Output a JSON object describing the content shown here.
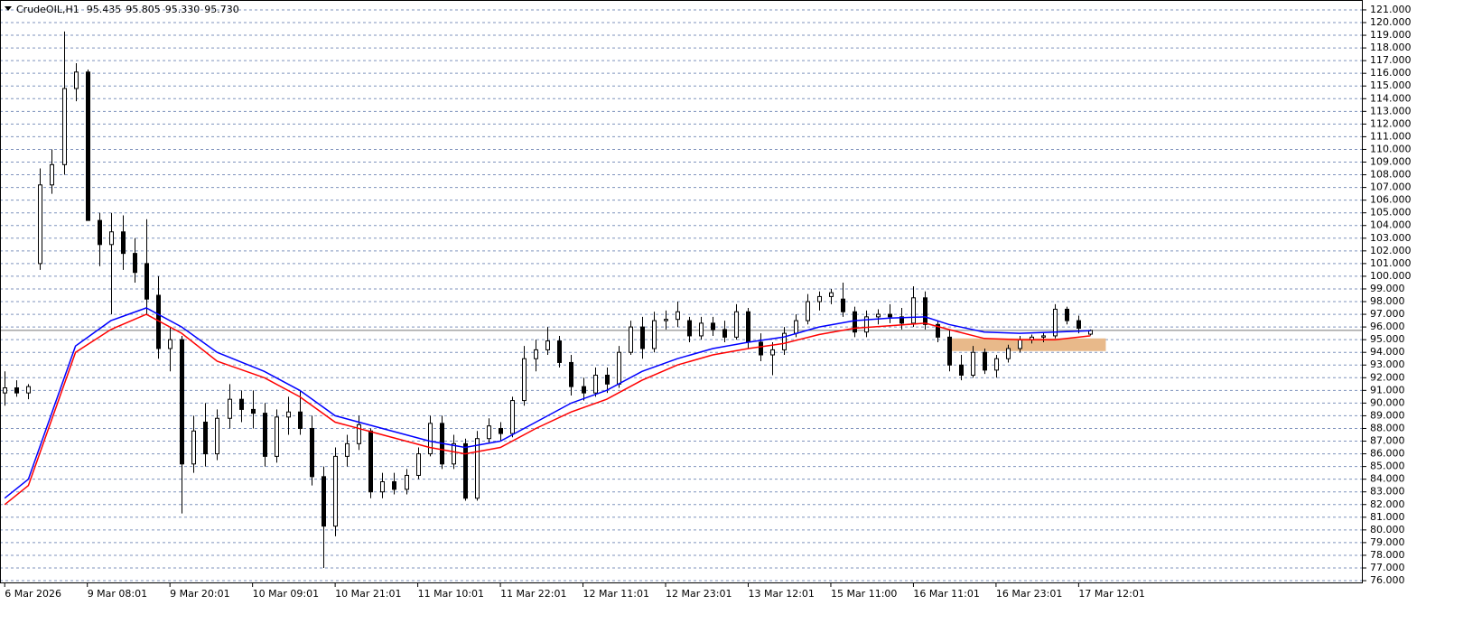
{
  "chart_data": {
    "type": "candlestick",
    "header": {
      "symbol": "CrudeOIL,H1",
      "values": [
        95.435,
        95.805,
        95.33,
        95.73
      ],
      "value_labels": [
        "95.435",
        "95.805",
        "95.330",
        "95.730"
      ]
    },
    "ylim": [
      75.86,
      121.78
    ],
    "yticks": [
      {
        "value": 76,
        "label": "76.000"
      },
      {
        "value": 77,
        "label": "77.000"
      },
      {
        "value": 78,
        "label": "78.000"
      },
      {
        "value": 79,
        "label": "79.000"
      },
      {
        "value": 80,
        "label": "80.000"
      },
      {
        "value": 81,
        "label": "81.000"
      },
      {
        "value": 82,
        "label": "82.000"
      },
      {
        "value": 83,
        "label": "83.000"
      },
      {
        "value": 84,
        "label": "84.000"
      },
      {
        "value": 85,
        "label": "85.000"
      },
      {
        "value": 86,
        "label": "86.000"
      },
      {
        "value": 87,
        "label": "87.000"
      },
      {
        "value": 88,
        "label": "88.000"
      },
      {
        "value": 89,
        "label": "89.000"
      },
      {
        "value": 90,
        "label": "90.000"
      },
      {
        "value": 91,
        "label": "91.000"
      },
      {
        "value": 92,
        "label": "92.000"
      },
      {
        "value": 93,
        "label": "93.000"
      },
      {
        "value": 94,
        "label": "94.000"
      },
      {
        "value": 95,
        "label": "95.000"
      },
      {
        "value": 96,
        "label": "96.000"
      },
      {
        "value": 97,
        "label": "97.000"
      },
      {
        "value": 98,
        "label": "98.000"
      },
      {
        "value": 99,
        "label": "99.000"
      },
      {
        "value": 100,
        "label": "100.000"
      },
      {
        "value": 101,
        "label": "101.000"
      },
      {
        "value": 102,
        "label": "102.000"
      },
      {
        "value": 103,
        "label": "103.000"
      },
      {
        "value": 104,
        "label": "104.000"
      },
      {
        "value": 105,
        "label": "105.000"
      },
      {
        "value": 106,
        "label": "106.000"
      },
      {
        "value": 107,
        "label": "107.000"
      },
      {
        "value": 108,
        "label": "108.000"
      },
      {
        "value": 109,
        "label": "109.000"
      },
      {
        "value": 110,
        "label": "110.000"
      },
      {
        "value": 111,
        "label": "111.000"
      },
      {
        "value": 112,
        "label": "112.000"
      },
      {
        "value": 113,
        "label": "113.000"
      },
      {
        "value": 114,
        "label": "114.000"
      },
      {
        "value": 115,
        "label": "115.000"
      },
      {
        "value": 116,
        "label": "116.000"
      },
      {
        "value": 117,
        "label": "117.000"
      },
      {
        "value": 118,
        "label": "118.000"
      },
      {
        "value": 119,
        "label": "119.000"
      },
      {
        "value": 120,
        "label": "120.000"
      },
      {
        "value": 121,
        "label": "121.000"
      }
    ],
    "xlim": [
      -0.4,
      115
    ],
    "xticks": [
      {
        "value": 0,
        "label": "6 Mar 2026"
      },
      {
        "value": 7,
        "label": "9 Mar 08:01"
      },
      {
        "value": 14,
        "label": "9 Mar 20:01"
      },
      {
        "value": 21,
        "label": "10 Mar 09:01"
      },
      {
        "value": 28,
        "label": "10 Mar 21:01"
      },
      {
        "value": 35,
        "label": "11 Mar 10:01"
      },
      {
        "value": 42,
        "label": "11 Mar 22:01"
      },
      {
        "value": 49,
        "label": "12 Mar 11:01"
      },
      {
        "value": 56,
        "label": "12 Mar 23:01"
      },
      {
        "value": 63,
        "label": "13 Mar 12:01"
      },
      {
        "value": 70,
        "label": "15 Mar 11:00"
      },
      {
        "value": 77,
        "label": "16 Mar 11:01"
      },
      {
        "value": 84,
        "label": "16 Mar 23:01"
      },
      {
        "value": 91,
        "label": "17 Mar 12:01"
      }
    ],
    "grid": true,
    "up_color": "#ffffff",
    "down_color": "#000000",
    "candles": [
      [
        90.8,
        92.5,
        89.8,
        91.2
      ],
      [
        91.2,
        91.8,
        90.5,
        90.8
      ],
      [
        90.8,
        91.5,
        90.3,
        91.3
      ],
      [
        101,
        108.5,
        100.5,
        107.2
      ],
      [
        107.2,
        110,
        106.5,
        108.8
      ],
      [
        108.8,
        119.3,
        108,
        114.8
      ],
      [
        114.8,
        116.8,
        113.8,
        116.1
      ],
      [
        116.1,
        116.3,
        104.5,
        104.4
      ],
      [
        104.4,
        105,
        100.8,
        102.5
      ],
      [
        102.5,
        105,
        97,
        103.5
      ],
      [
        103.5,
        104.8,
        100.5,
        101.8
      ],
      [
        101.8,
        103,
        99.5,
        100.3
      ],
      [
        101,
        104.5,
        97,
        98.2
      ],
      [
        98.5,
        100,
        93.5,
        94.3
      ],
      [
        94.3,
        96,
        92.5,
        95
      ],
      [
        95,
        95.3,
        81.3,
        85.2
      ],
      [
        85.2,
        89,
        84.5,
        87.8
      ],
      [
        88.5,
        90,
        85,
        86
      ],
      [
        86,
        89.5,
        85.5,
        88.8
      ],
      [
        88.8,
        91.5,
        88,
        90.3
      ],
      [
        90.3,
        91,
        88.5,
        89.5
      ],
      [
        89.5,
        91,
        88,
        89.2
      ],
      [
        89.2,
        90,
        85,
        85.8
      ],
      [
        85.8,
        89.5,
        85.3,
        88.9
      ],
      [
        88.9,
        90.5,
        87.5,
        89.3
      ],
      [
        89.3,
        91,
        87.5,
        88
      ],
      [
        88,
        89,
        83.5,
        84.2
      ],
      [
        84.2,
        85,
        77,
        80.3
      ],
      [
        80.3,
        86.5,
        79.5,
        85.8
      ],
      [
        85.8,
        87.5,
        85,
        86.8
      ],
      [
        86.8,
        89,
        86.3,
        88.3
      ],
      [
        87.8,
        88,
        82.5,
        83
      ],
      [
        83,
        84.5,
        82.5,
        83.8
      ],
      [
        83.8,
        84.5,
        82.8,
        83.2
      ],
      [
        83.2,
        84.8,
        82.8,
        84.3
      ],
      [
        84.3,
        86.5,
        84,
        86
      ],
      [
        86,
        89,
        85.8,
        88.4
      ],
      [
        88.4,
        89,
        84.8,
        85.2
      ],
      [
        85.2,
        87.5,
        84.8,
        86.8
      ],
      [
        86.8,
        87.2,
        82.3,
        82.5
      ],
      [
        82.5,
        87.8,
        82.3,
        87.2
      ],
      [
        87.2,
        88.8,
        86.8,
        88.2
      ],
      [
        88,
        88.5,
        87,
        87.6
      ],
      [
        87.6,
        90.5,
        87.3,
        90.2
      ],
      [
        90.2,
        94.5,
        89.8,
        93.5
      ],
      [
        93.5,
        95,
        92.5,
        94.2
      ],
      [
        94.2,
        96,
        93.8,
        94.9
      ],
      [
        94.9,
        95.3,
        92.8,
        93.2
      ],
      [
        93.2,
        93.8,
        90.6,
        91.3
      ],
      [
        91.3,
        92,
        90.2,
        90.8
      ],
      [
        90.8,
        92.8,
        90.5,
        92.2
      ],
      [
        92.2,
        92.8,
        90.8,
        91.5
      ],
      [
        91.5,
        94.5,
        91.2,
        94
      ],
      [
        94,
        96.5,
        93.8,
        96
      ],
      [
        96,
        96.8,
        93.5,
        94.3
      ],
      [
        94.3,
        97.2,
        94,
        96.5
      ],
      [
        96.5,
        97.3,
        95.8,
        96.6
      ],
      [
        96.6,
        98,
        96,
        97.2
      ],
      [
        96.5,
        96.8,
        94.8,
        95.3
      ],
      [
        95.3,
        96.8,
        95,
        96.3
      ],
      [
        96.3,
        96.8,
        95.3,
        95.8
      ],
      [
        95.8,
        96.5,
        94.8,
        95.2
      ],
      [
        95.2,
        97.8,
        95,
        97.2
      ],
      [
        97.2,
        97.5,
        94.3,
        94.8
      ],
      [
        94.8,
        95.5,
        93.3,
        93.8
      ],
      [
        93.8,
        94.8,
        92.2,
        94.2
      ],
      [
        94.2,
        96,
        93.8,
        95.5
      ],
      [
        95.5,
        97,
        95.2,
        96.5
      ],
      [
        96.5,
        98.6,
        96.2,
        98
      ],
      [
        98,
        98.8,
        97.3,
        98.4
      ],
      [
        98.4,
        99,
        97.8,
        98.7
      ],
      [
        98.2,
        99.5,
        96.8,
        97.2
      ],
      [
        97.2,
        97.6,
        95.2,
        95.6
      ],
      [
        95.6,
        97.3,
        95.2,
        96.8
      ],
      [
        96.8,
        97.4,
        96.2,
        97
      ],
      [
        97,
        97.8,
        96.3,
        96.8
      ],
      [
        96.8,
        97.5,
        95.8,
        96.3
      ],
      [
        96.3,
        99.2,
        96,
        98.3
      ],
      [
        98.3,
        98.8,
        95.8,
        96.2
      ],
      [
        96.2,
        96.5,
        94.8,
        95.2
      ],
      [
        95.2,
        95.8,
        92.5,
        93
      ],
      [
        93,
        93.8,
        91.8,
        92.2
      ],
      [
        92.2,
        94.5,
        92,
        94
      ],
      [
        94,
        94.3,
        92.3,
        92.6
      ],
      [
        92.6,
        93.8,
        92,
        93.5
      ],
      [
        93.5,
        94.6,
        93.2,
        94.3
      ],
      [
        94.3,
        95.3,
        94,
        95
      ],
      [
        95,
        95.4,
        94.7,
        95.2
      ],
      [
        95.2,
        95.6,
        94.8,
        95.3
      ],
      [
        95.3,
        97.8,
        95.1,
        97.4
      ],
      [
        97.4,
        97.6,
        96.2,
        96.5
      ],
      [
        96.5,
        96.9,
        95.5,
        95.9
      ],
      [
        95.435,
        95.805,
        95.33,
        95.73
      ]
    ],
    "lines": [
      {
        "color": "#0000ff",
        "x": [
          0,
          2,
          6,
          9,
          12,
          15,
          18,
          22,
          25,
          28,
          32,
          36,
          39,
          42,
          45,
          48,
          51,
          54,
          57,
          60,
          63,
          66,
          69,
          72,
          75,
          78,
          80,
          83,
          86,
          89,
          92
        ],
        "values": [
          82.5,
          84,
          94.5,
          96.5,
          97.5,
          96,
          94,
          92.5,
          91,
          89,
          88,
          87,
          86.5,
          87,
          88.5,
          90,
          91,
          92.5,
          93.5,
          94.3,
          94.8,
          95.2,
          96,
          96.5,
          96.7,
          96.8,
          96.2,
          95.6,
          95.5,
          95.6,
          95.7
        ]
      },
      {
        "color": "#ff0000",
        "x": [
          0,
          2,
          6,
          9,
          12,
          15,
          18,
          22,
          25,
          28,
          32,
          36,
          39,
          42,
          45,
          48,
          51,
          54,
          57,
          60,
          63,
          66,
          69,
          72,
          75,
          78,
          80,
          83,
          86,
          89,
          92
        ],
        "values": [
          82,
          83.5,
          94,
          95.8,
          97,
          95.5,
          93.3,
          92,
          90.5,
          88.5,
          87.5,
          86.5,
          86,
          86.5,
          88,
          89.3,
          90.3,
          91.8,
          93,
          93.8,
          94.3,
          94.7,
          95.4,
          95.9,
          96.1,
          96.3,
          95.8,
          95.1,
          95,
          95,
          95.3
        ]
      }
    ],
    "zone": {
      "x": [
        80,
        93.3
      ],
      "y": [
        94.1,
        95.1
      ],
      "color": "#e8b98a"
    },
    "price_line": 95.73
  }
}
